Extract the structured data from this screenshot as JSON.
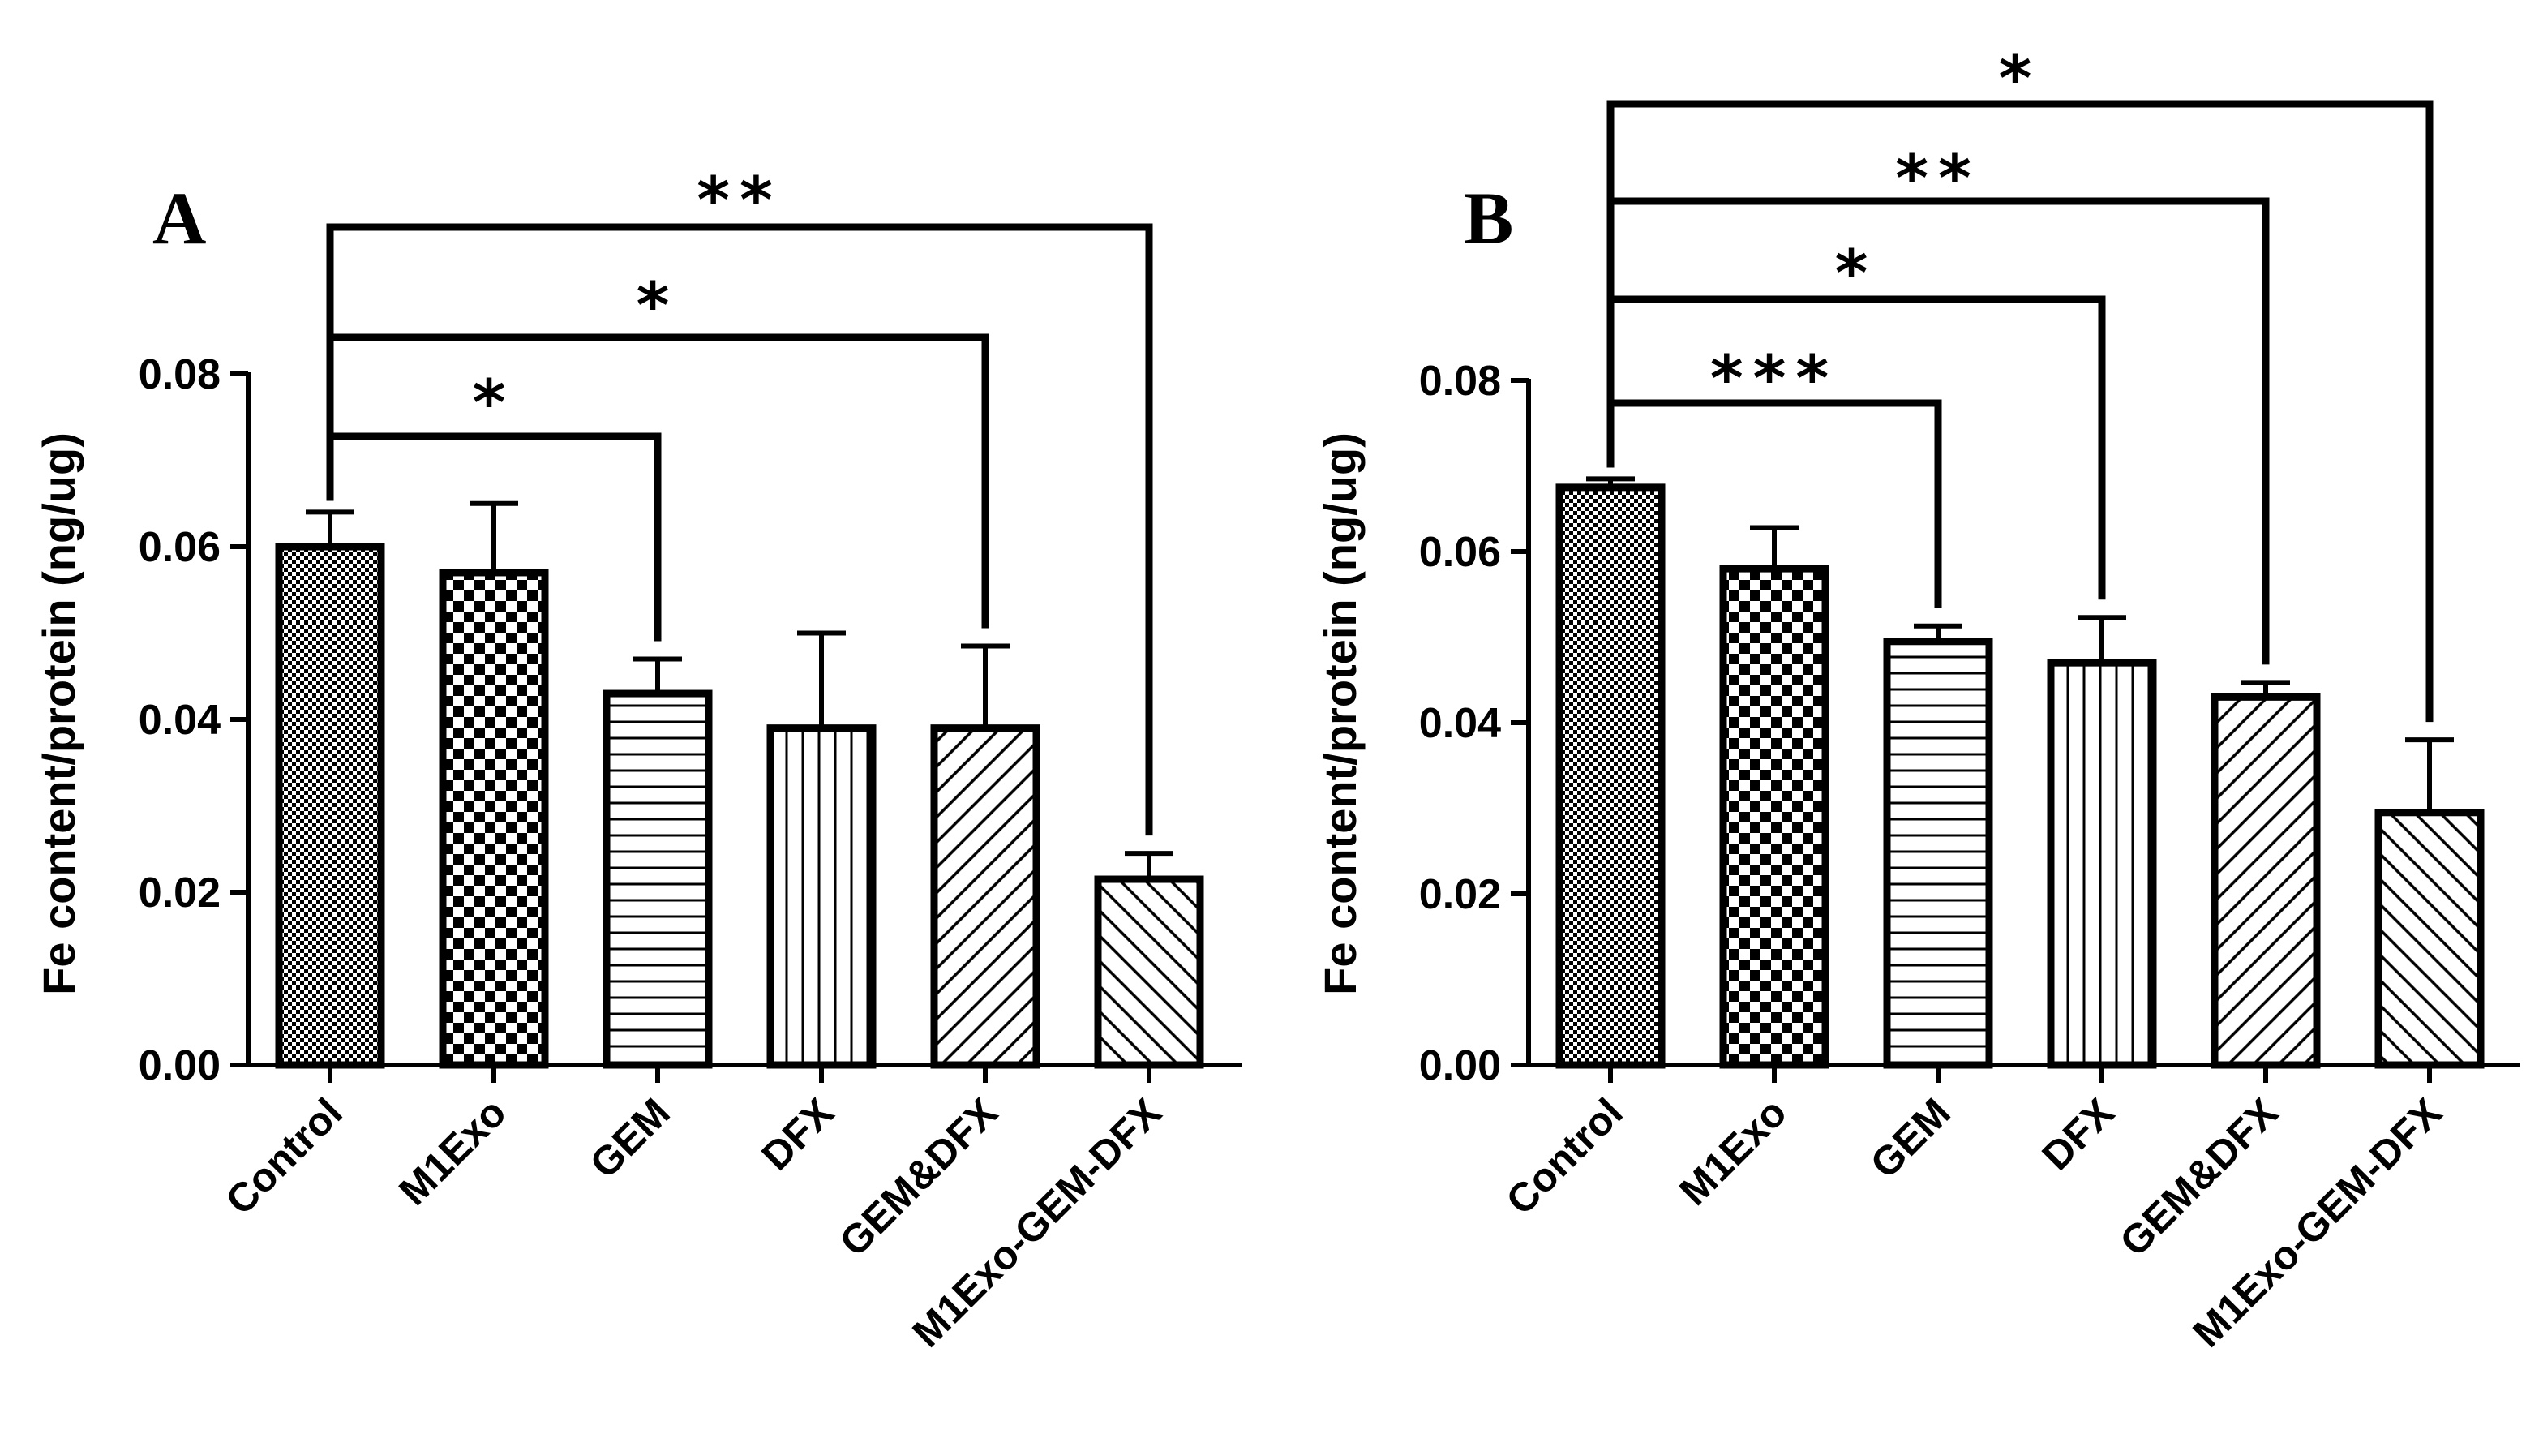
{
  "chart_data": [
    {
      "type": "bar",
      "panel_label": "A",
      "ylabel": "Fe content/protein (ng/ug)",
      "ylim": [
        0,
        0.08
      ],
      "yticks": [
        "0.00",
        "0.02",
        "0.04",
        "0.06",
        "0.08"
      ],
      "ytick_values": [
        0,
        0.02,
        0.04,
        0.06,
        0.08
      ],
      "categories": [
        "Control",
        "M1Exo",
        "GEM",
        "DFX",
        "GEM&DFX",
        "M1Exo-GEM-DFX"
      ],
      "values": [
        0.06,
        0.057,
        0.043,
        0.039,
        0.039,
        0.0215
      ],
      "errors": [
        0.004,
        0.008,
        0.004,
        0.011,
        0.0095,
        0.003
      ],
      "patterns": [
        "fine-check",
        "checker",
        "horizontal",
        "vertical",
        "diag-up",
        "diag-down"
      ],
      "comparisons": [
        {
          "from": "Control",
          "to": "GEM",
          "label": "*"
        },
        {
          "from": "Control",
          "to": "GEM&DFX",
          "label": "*"
        },
        {
          "from": "Control",
          "to": "M1Exo-GEM-DFX",
          "label": "**"
        }
      ]
    },
    {
      "type": "bar",
      "panel_label": "B",
      "ylabel": "Fe content/protein (ng/ug)",
      "ylim": [
        0,
        0.08
      ],
      "yticks": [
        "0.00",
        "0.02",
        "0.04",
        "0.06",
        "0.08"
      ],
      "ytick_values": [
        0,
        0.02,
        0.04,
        0.06,
        0.08
      ],
      "categories": [
        "Control",
        "M1Exo",
        "GEM",
        "DFX",
        "GEM&DFX",
        "M1Exo-GEM-DFX"
      ],
      "values": [
        0.0675,
        0.058,
        0.0495,
        0.047,
        0.043,
        0.0295
      ],
      "errors": [
        0.001,
        0.0048,
        0.0018,
        0.0053,
        0.0017,
        0.0085
      ],
      "patterns": [
        "fine-check",
        "checker",
        "horizontal",
        "vertical",
        "diag-up",
        "diag-down"
      ],
      "comparisons": [
        {
          "from": "Control",
          "to": "GEM",
          "label": "***"
        },
        {
          "from": "Control",
          "to": "DFX",
          "label": "*"
        },
        {
          "from": "Control",
          "to": "GEM&DFX",
          "label": "**"
        },
        {
          "from": "Control",
          "to": "M1Exo-GEM-DFX",
          "label": "*"
        }
      ]
    }
  ]
}
